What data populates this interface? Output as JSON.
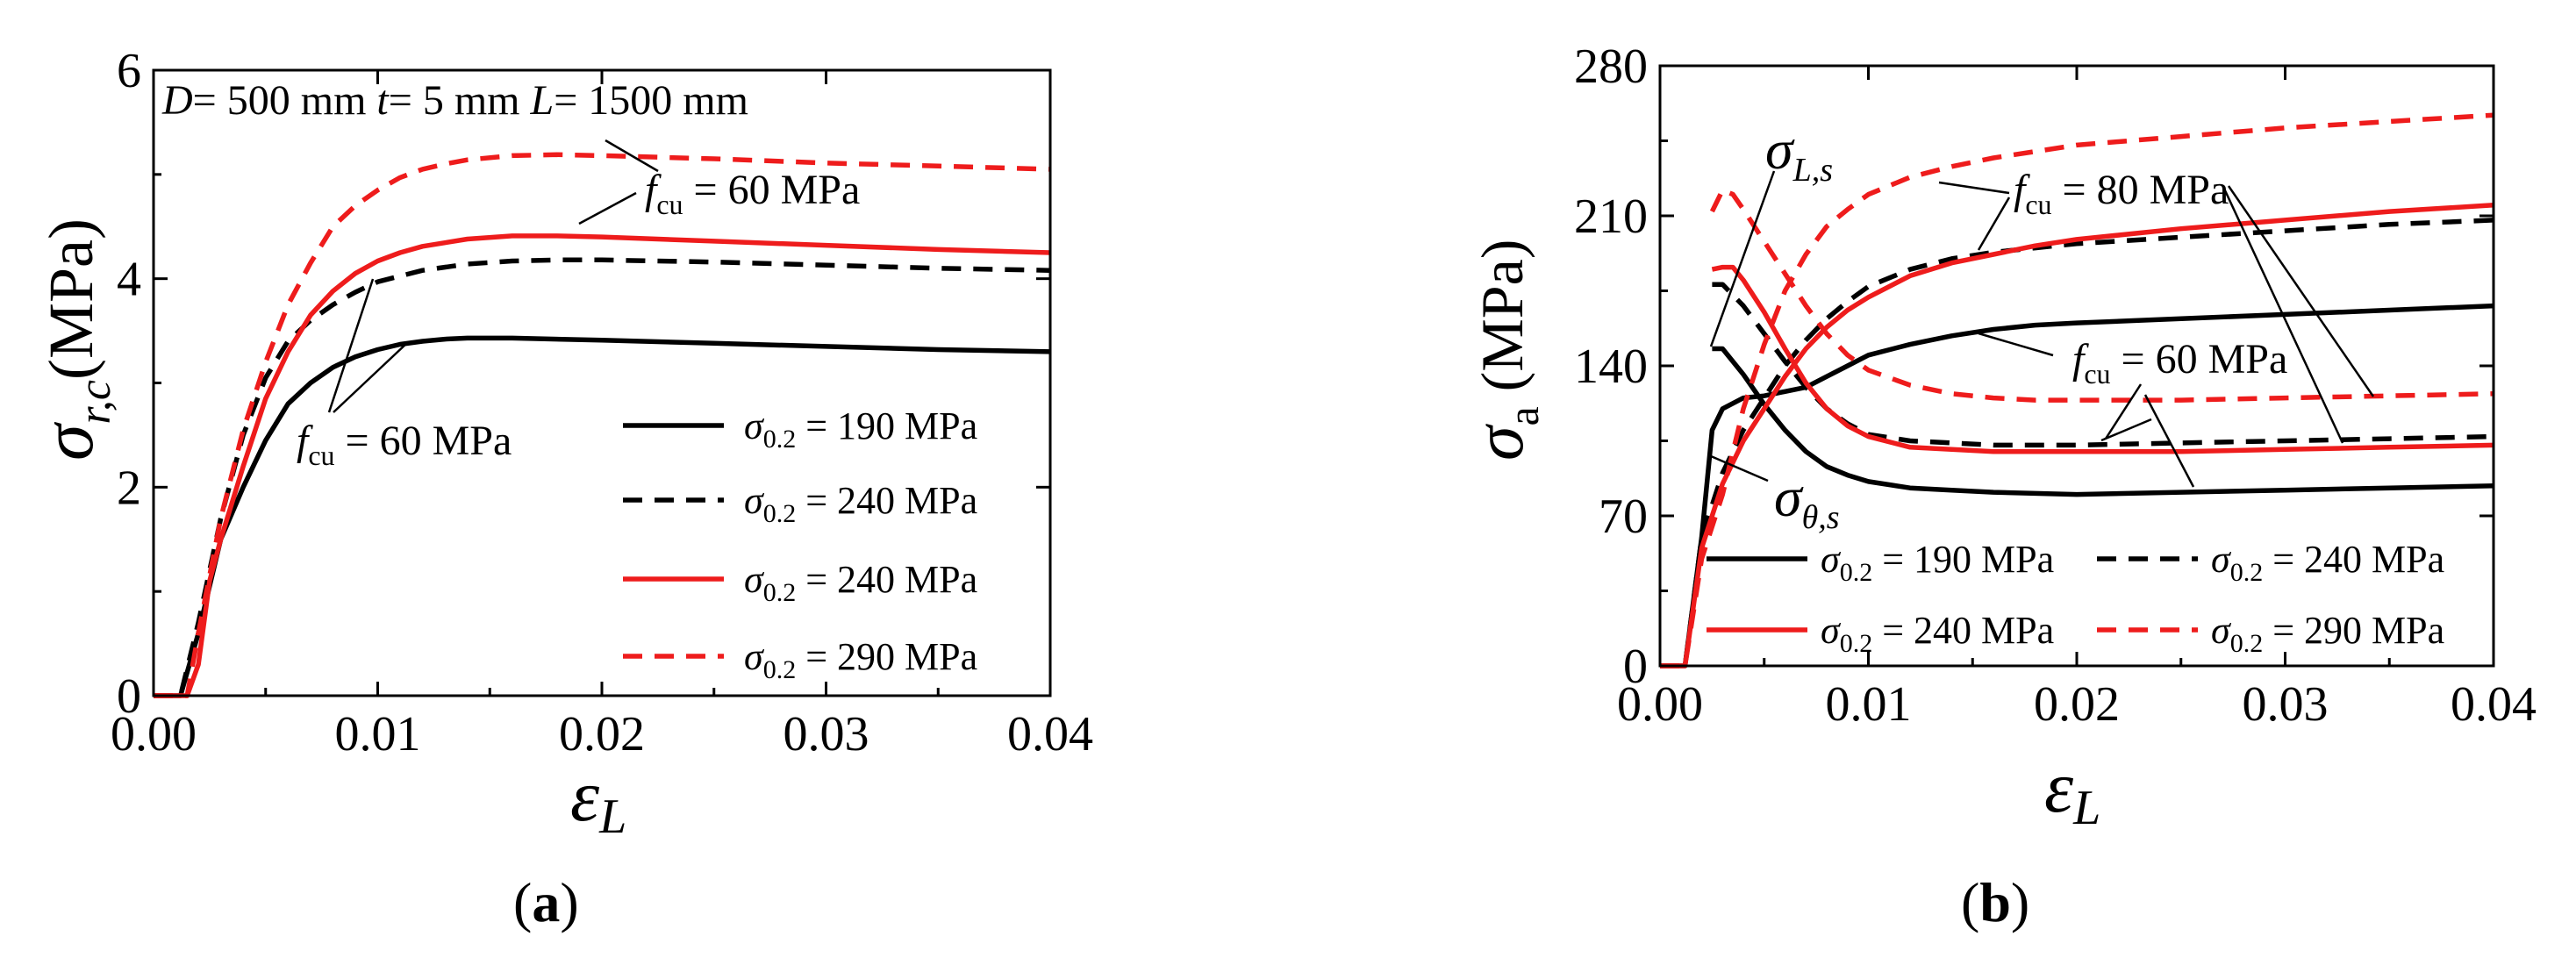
{
  "chart_data": [
    {
      "id": "a",
      "type": "line",
      "panel_label": "a",
      "header": {
        "D": "D",
        "D_value": "= 500 mm",
        "t": "t",
        "t_value": "= 5 mm",
        "L": "L",
        "L_value": "= 1500 mm"
      },
      "ylabel": {
        "symbol": "σ",
        "subscript": "r,c",
        "unit": "(MPa)"
      },
      "xlabel": {
        "symbol": "ε",
        "subscript": "L"
      },
      "xlim": [
        0,
        0.04
      ],
      "ylim": [
        0,
        6
      ],
      "xticks": [
        "0.00",
        "0.01",
        "0.02",
        "0.03",
        "0.04"
      ],
      "yticks": [
        "0",
        "2",
        "4",
        "6"
      ],
      "series": [
        {
          "name": "σ0.2 = 190 MPa",
          "legend_symbol": "σ",
          "legend_sub": "0.2",
          "legend_value": " = 190 MPa",
          "color": "#000000",
          "dash": "solid",
          "x": [
            0,
            0.0012,
            0.002,
            0.003,
            0.004,
            0.005,
            0.006,
            0.007,
            0.008,
            0.009,
            0.01,
            0.011,
            0.012,
            0.013,
            0.014,
            0.016,
            0.02,
            0.025,
            0.03,
            0.035,
            0.04
          ],
          "y": [
            0,
            0,
            0.6,
            1.5,
            2.0,
            2.45,
            2.8,
            3.0,
            3.15,
            3.25,
            3.32,
            3.37,
            3.4,
            3.42,
            3.43,
            3.43,
            3.41,
            3.38,
            3.35,
            3.32,
            3.3
          ]
        },
        {
          "name": "σ0.2 = 240 MPa",
          "legend_symbol": "σ",
          "legend_sub": "0.2",
          "legend_value": " = 240 MPa",
          "color": "#000000",
          "dash": "dashed",
          "x": [
            0,
            0.0012,
            0.002,
            0.003,
            0.004,
            0.005,
            0.006,
            0.007,
            0.008,
            0.009,
            0.01,
            0.012,
            0.014,
            0.016,
            0.018,
            0.02,
            0.025,
            0.03,
            0.035,
            0.04
          ],
          "y": [
            0,
            0,
            0.7,
            1.7,
            2.5,
            3.05,
            3.4,
            3.6,
            3.75,
            3.87,
            3.97,
            4.08,
            4.14,
            4.17,
            4.18,
            4.18,
            4.16,
            4.13,
            4.1,
            4.08
          ]
        },
        {
          "name": "σ0.2 = 240 MPa",
          "legend_symbol": "σ",
          "legend_sub": "0.2",
          "legend_value": " = 240 MPa",
          "color": "#ee1c1c",
          "dash": "solid",
          "x": [
            0,
            0.0015,
            0.002,
            0.0025,
            0.003,
            0.004,
            0.005,
            0.006,
            0.007,
            0.008,
            0.009,
            0.01,
            0.011,
            0.012,
            0.014,
            0.016,
            0.018,
            0.02,
            0.025,
            0.03,
            0.035,
            0.04
          ],
          "y": [
            0,
            0,
            0.3,
            1.1,
            1.5,
            2.2,
            2.85,
            3.3,
            3.65,
            3.88,
            4.05,
            4.17,
            4.25,
            4.31,
            4.38,
            4.41,
            4.41,
            4.4,
            4.36,
            4.32,
            4.28,
            4.25
          ]
        },
        {
          "name": "σ0.2 = 290 MPa",
          "legend_symbol": "σ",
          "legend_sub": "0.2",
          "legend_value": " = 290 MPa",
          "color": "#ee1c1c",
          "dash": "dashed",
          "x": [
            0,
            0.0015,
            0.002,
            0.003,
            0.004,
            0.005,
            0.006,
            0.007,
            0.008,
            0.009,
            0.01,
            0.011,
            0.012,
            0.013,
            0.014,
            0.016,
            0.018,
            0.02,
            0.025,
            0.03,
            0.035,
            0.04
          ],
          "y": [
            0,
            0,
            0.6,
            1.7,
            2.55,
            3.2,
            3.75,
            4.15,
            4.5,
            4.7,
            4.85,
            4.97,
            5.05,
            5.1,
            5.14,
            5.18,
            5.19,
            5.18,
            5.15,
            5.11,
            5.08,
            5.05
          ]
        }
      ],
      "annotations": [
        {
          "sym": "f",
          "sub": "cu",
          "text": " = 60 MPa"
        },
        {
          "sym": "f",
          "sub": "cu",
          "text": " = 60 MPa"
        }
      ]
    },
    {
      "id": "b",
      "type": "line",
      "panel_label": "b",
      "ylabel": {
        "symbol": "σ",
        "subscript": "a",
        "unit": " (MPa)"
      },
      "xlabel": {
        "symbol": "ε",
        "subscript": "L"
      },
      "xlim": [
        0,
        0.04
      ],
      "ylim": [
        0,
        280
      ],
      "xticks": [
        "0.00",
        "0.01",
        "0.02",
        "0.03",
        "0.04"
      ],
      "yticks": [
        "0",
        "70",
        "140",
        "210",
        "280"
      ],
      "series": [
        {
          "name": "σ0.2 = 190 MPa (σL,s)",
          "legend_symbol": "σ",
          "legend_sub": "0.2",
          "legend_value": " = 190 MPa",
          "color": "#000000",
          "dash": "solid",
          "x": [
            0,
            0.0012,
            0.002,
            0.0025,
            0.003,
            0.004,
            0.005,
            0.006,
            0.007,
            0.008,
            0.009,
            0.01,
            0.012,
            0.014,
            0.016,
            0.018,
            0.02,
            0.025,
            0.03,
            0.035,
            0.04
          ],
          "y": [
            0,
            0,
            60,
            110,
            120,
            125,
            126,
            128,
            130,
            135,
            140,
            145,
            150,
            154,
            157,
            159,
            160,
            162,
            164,
            166,
            168
          ]
        },
        {
          "name": "σ0.2 = 190 MPa (σθ,s)",
          "color": "#000000",
          "dash": "solid",
          "x": [
            0.0025,
            0.003,
            0.004,
            0.005,
            0.006,
            0.007,
            0.008,
            0.009,
            0.01,
            0.012,
            0.014,
            0.016,
            0.02,
            0.025,
            0.03,
            0.035,
            0.04
          ],
          "y": [
            148,
            148,
            136,
            122,
            110,
            100,
            93,
            89,
            86,
            83,
            82,
            81,
            80,
            81,
            82,
            83,
            84
          ]
        },
        {
          "name": "σ0.2 = 240 MPa (σL,s)",
          "legend_symbol": "σ",
          "legend_sub": "0.2",
          "legend_value": " = 240 MPa",
          "color": "#000000",
          "dash": "dashed",
          "x": [
            0,
            0.0012,
            0.002,
            0.003,
            0.004,
            0.005,
            0.006,
            0.007,
            0.008,
            0.009,
            0.01,
            0.012,
            0.014,
            0.016,
            0.018,
            0.02,
            0.025,
            0.03,
            0.035,
            0.04
          ],
          "y": [
            0,
            0,
            60,
            90,
            110,
            125,
            140,
            152,
            162,
            170,
            177,
            185,
            190,
            193,
            195,
            197,
            200,
            203,
            206,
            208
          ]
        },
        {
          "name": "σ0.2 = 240 MPa (σθ,s)",
          "color": "#000000",
          "dash": "dashed",
          "x": [
            0.0025,
            0.003,
            0.004,
            0.005,
            0.006,
            0.007,
            0.008,
            0.009,
            0.01,
            0.012,
            0.014,
            0.016,
            0.02,
            0.025,
            0.03,
            0.035,
            0.04
          ],
          "y": [
            178,
            178,
            168,
            155,
            142,
            130,
            120,
            113,
            108,
            105,
            104,
            103,
            103,
            104,
            105,
            106,
            107
          ]
        },
        {
          "name": "σ0.2 = 240 MPa (σL,s)",
          "legend_symbol": "σ",
          "legend_sub": "0.2",
          "legend_value": " = 240 MPa",
          "color": "#ee1c1c",
          "dash": "solid",
          "x": [
            0,
            0.0012,
            0.002,
            0.003,
            0.004,
            0.005,
            0.006,
            0.007,
            0.008,
            0.009,
            0.01,
            0.012,
            0.014,
            0.016,
            0.018,
            0.02,
            0.025,
            0.03,
            0.035,
            0.04
          ],
          "y": [
            0,
            0,
            55,
            85,
            105,
            120,
            135,
            148,
            158,
            166,
            172,
            182,
            188,
            192,
            196,
            199,
            204,
            208,
            212,
            215
          ]
        },
        {
          "name": "σ0.2 = 240 MPa (σθ,s)",
          "color": "#ee1c1c",
          "dash": "solid",
          "x": [
            0.0025,
            0.003,
            0.0035,
            0.004,
            0.005,
            0.006,
            0.007,
            0.008,
            0.009,
            0.01,
            0.012,
            0.014,
            0.016,
            0.02,
            0.025,
            0.03,
            0.035,
            0.04
          ],
          "y": [
            185,
            186,
            186,
            180,
            165,
            148,
            132,
            120,
            112,
            107,
            102,
            101,
            100,
            100,
            100,
            101,
            102,
            103
          ]
        },
        {
          "name": "σ0.2 = 290 MPa (σL,s)",
          "legend_symbol": "σ",
          "legend_sub": "0.2",
          "legend_value": " = 290 MPa",
          "color": "#ee1c1c",
          "dash": "dashed",
          "x": [
            0,
            0.0012,
            0.002,
            0.003,
            0.004,
            0.005,
            0.006,
            0.007,
            0.008,
            0.009,
            0.01,
            0.012,
            0.014,
            0.016,
            0.018,
            0.02,
            0.025,
            0.03,
            0.035,
            0.04
          ],
          "y": [
            0,
            0,
            50,
            80,
            120,
            150,
            175,
            192,
            205,
            213,
            220,
            228,
            233,
            237,
            240,
            243,
            247,
            251,
            254,
            257
          ]
        },
        {
          "name": "σ0.2 = 290 MPa (σθ,s)",
          "color": "#ee1c1c",
          "dash": "dashed",
          "x": [
            0.0025,
            0.003,
            0.0035,
            0.004,
            0.005,
            0.006,
            0.007,
            0.008,
            0.009,
            0.01,
            0.012,
            0.014,
            0.016,
            0.018,
            0.02,
            0.025,
            0.03,
            0.035,
            0.04
          ],
          "y": [
            212,
            222,
            220,
            213,
            198,
            183,
            168,
            155,
            145,
            138,
            131,
            127,
            125,
            124,
            124,
            124,
            125,
            126,
            127
          ]
        }
      ],
      "annotations": [
        {
          "sym": "σ",
          "sub": "L,s",
          "text": ""
        },
        {
          "sym": "σ",
          "sub": "θ,s",
          "text": ""
        },
        {
          "sym": "f",
          "sub": "cu",
          "text": " = 80 MPa",
          "color": "#ee1c1c"
        },
        {
          "sym": "f",
          "sub": "cu",
          "text": " = 60 MPa"
        }
      ]
    }
  ]
}
